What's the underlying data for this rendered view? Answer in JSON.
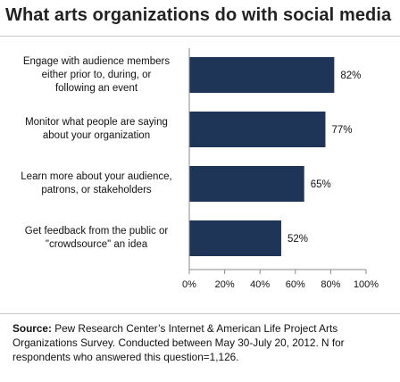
{
  "title": "What arts organizations do with social media",
  "source": {
    "label": "Source:",
    "text": "Pew Research Center’s Internet & American Life Project Arts Organizations Survey. Conducted between May 30-July 20, 2012. N for respondents who answered this question=1,126."
  },
  "colors": {
    "bar": "#1f3558",
    "axis": "#8a8a8a",
    "text": "#111111"
  },
  "chart_data": {
    "type": "bar",
    "orientation": "horizontal",
    "categories": [
      "Engage with audience members either prior to, during, or following an event",
      "Monitor what people are saying about your organization",
      "Learn more about your audience, patrons, or stakeholders",
      "Get feedback from the public or \"crowdsource\" an idea"
    ],
    "category_lines": [
      [
        "Engage with audience members",
        "either prior to, during, or",
        "following an event"
      ],
      [
        "Monitor what people are saying",
        "about your organization"
      ],
      [
        "Learn more about your audience,",
        "patrons, or stakeholders"
      ],
      [
        "Get feedback from the public or",
        "\"crowdsource\" an idea"
      ]
    ],
    "values": [
      82,
      77,
      65,
      52
    ],
    "data_labels": [
      "82%",
      "77%",
      "65%",
      "52%"
    ],
    "xlim": [
      0,
      100
    ],
    "xticks": [
      0,
      20,
      40,
      60,
      80,
      100
    ],
    "xtick_labels": [
      "0%",
      "20%",
      "40%",
      "60%",
      "80%",
      "100%"
    ],
    "grid": false
  }
}
